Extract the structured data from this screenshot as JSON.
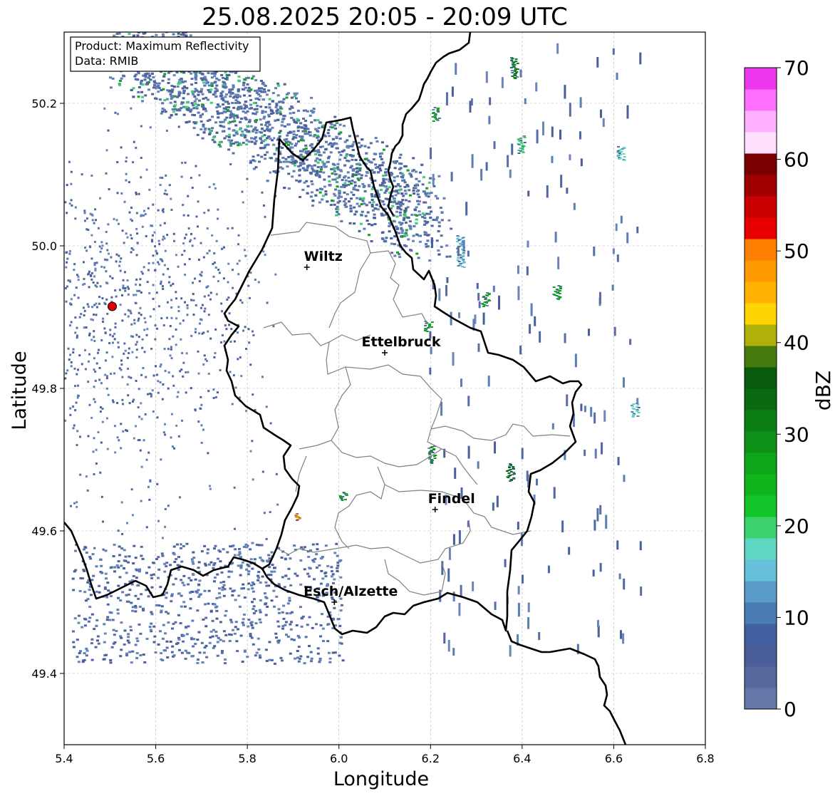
{
  "title": "25.08.2025 20:05 - 20:09 UTC",
  "info_box": {
    "product": "Product: Maximum Reflectivity",
    "data": "Data: RMIB"
  },
  "x_axis": {
    "label": "Longitude",
    "ticks": [
      "5.4",
      "5.6",
      "5.8",
      "6.0",
      "6.2",
      "6.4",
      "6.6",
      "6.8"
    ],
    "range": [
      5.4,
      6.8
    ]
  },
  "y_axis": {
    "label": "Latitude",
    "ticks": [
      "49.4",
      "49.6",
      "49.8",
      "50.0",
      "50.2"
    ],
    "range": [
      49.3,
      50.3
    ]
  },
  "colorbar": {
    "label": "dBZ",
    "ticks": [
      "0",
      "10",
      "20",
      "30",
      "40",
      "50",
      "60",
      "70"
    ],
    "colors": [
      "#6477a8",
      "#56699e",
      "#4a5f9a",
      "#4260a2",
      "#4a7db3",
      "#5a9bc8",
      "#67c0d9",
      "#60d6c4",
      "#3cd36e",
      "#13c42b",
      "#10b51c",
      "#0fa51a",
      "#0d9217",
      "#0c7f14",
      "#0b6a11",
      "#0a5a0e",
      "#457a0c",
      "#b0b108",
      "#ffd400",
      "#ffb300",
      "#ff9900",
      "#ff7f00",
      "#e60000",
      "#c80000",
      "#a00000",
      "#780000",
      "#ffe0ff",
      "#ffb0ff",
      "#ff70ff",
      "#ee38ee"
    ]
  },
  "cities": [
    {
      "name": "Wiltz",
      "lon": 5.93,
      "lat": 49.97
    },
    {
      "name": "Ettelbruck",
      "lon": 6.1,
      "lat": 49.85
    },
    {
      "name": "Findel",
      "lon": 6.21,
      "lat": 49.63
    },
    {
      "name": "Esch/Alzette",
      "lon": 5.99,
      "lat": 49.5
    }
  ],
  "radar_site": {
    "lon": 5.505,
    "lat": 49.915,
    "color": "#e00000"
  },
  "grid": true
}
